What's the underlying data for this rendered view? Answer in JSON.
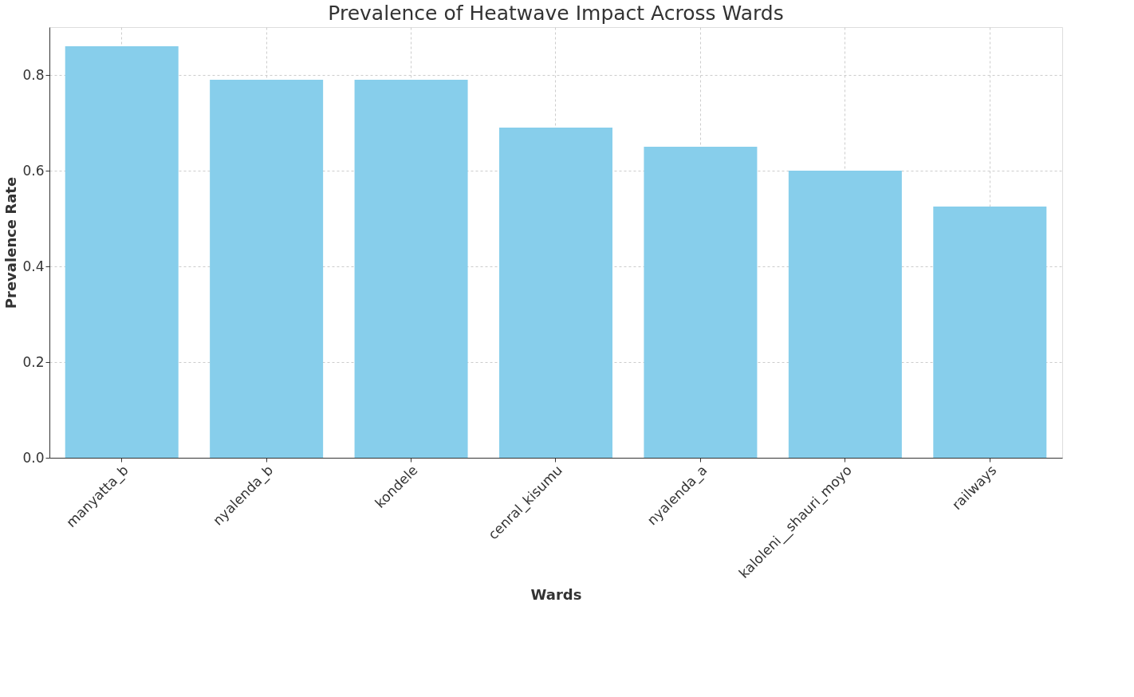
{
  "chart_data": {
    "type": "bar",
    "title": "Prevalence of Heatwave Impact Across Wards",
    "xlabel": "Wards",
    "ylabel": "Prevalence Rate",
    "categories": [
      "manyatta_b",
      "nyalenda_b",
      "kondele",
      "cenral_kisumu",
      "nyalenda_a",
      "kaloleni__shauri_moyo",
      "railways"
    ],
    "values": [
      0.86,
      0.79,
      0.79,
      0.69,
      0.65,
      0.6,
      0.525
    ],
    "color": "#87ceeb",
    "ylim": [
      0,
      0.9
    ],
    "yticks": [
      {
        "value": 0,
        "label": "0.0"
      },
      0.2,
      0.4,
      0.6,
      0.8
    ],
    "grid": true
  }
}
